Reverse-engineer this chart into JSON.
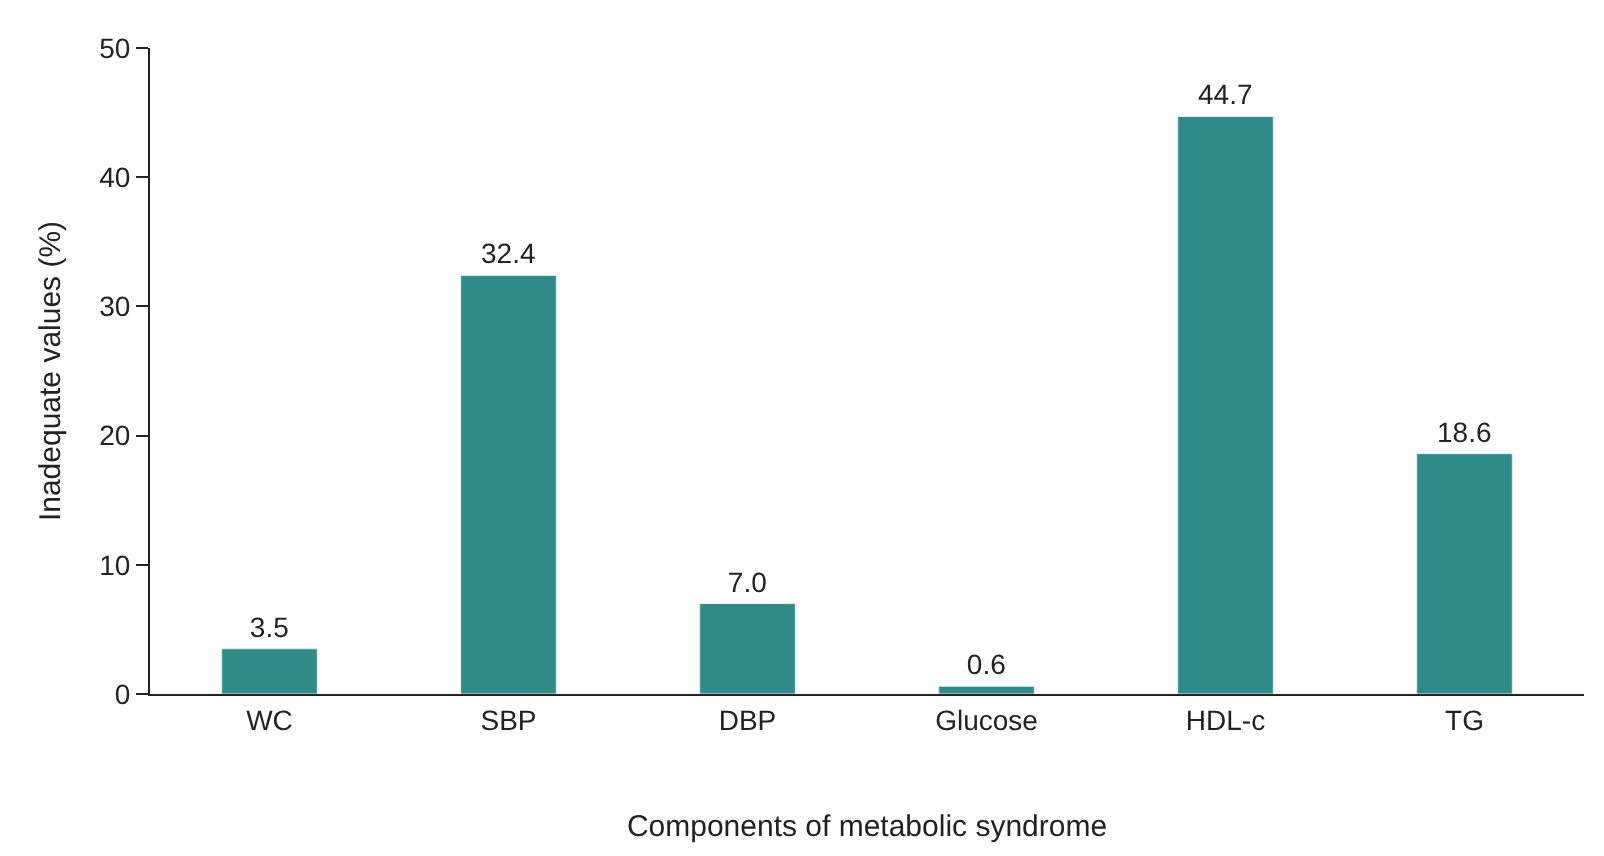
{
  "chart_data": {
    "type": "bar",
    "xlabel": "Components of metabolic syndrome",
    "ylabel": "Inadequate values (%)",
    "categories": [
      "WC",
      "SBP",
      "DBP",
      "Glucose",
      "HDL-c",
      "TG"
    ],
    "values": [
      3.5,
      32.4,
      7.0,
      0.6,
      44.7,
      18.6
    ],
    "value_labels": [
      "3.5",
      "32.4",
      "7.0",
      "0.6",
      "44.7",
      "18.6"
    ],
    "color": "#2e8b87",
    "ylim": [
      0,
      50
    ],
    "yticks": [
      0,
      10,
      20,
      30,
      40,
      50
    ],
    "legend": false
  }
}
